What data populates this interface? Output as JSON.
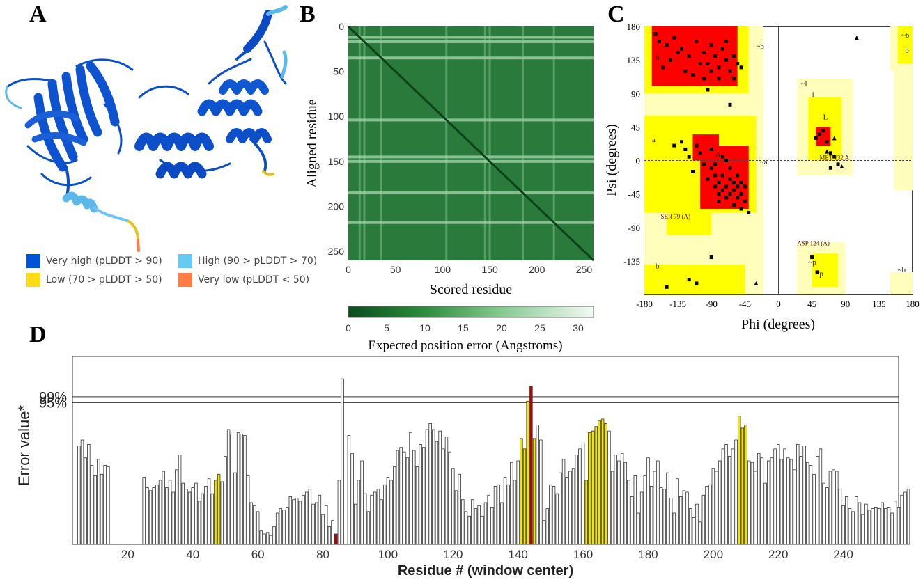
{
  "panels": {
    "a": "A",
    "b": "B",
    "c": "C",
    "d": "D"
  },
  "colors": {
    "very_high": "#0053d6",
    "high": "#65cbf3",
    "low": "#ffdb13",
    "very_low": "#ff7d45",
    "rama_core": "#ff0000",
    "rama_allowed": "#ffff00",
    "rama_generous": "#ffffbb",
    "bar_red": "#c00000",
    "bar_yellow": "#f2e600"
  },
  "panel_a": {
    "legend": [
      {
        "label": "Very high (pLDDT > 90)",
        "color_key": "very_high"
      },
      {
        "label": "High (90 > pLDDT > 70)",
        "color_key": "high"
      },
      {
        "label": "Low (70 > pLDDT > 50)",
        "color_key": "low"
      },
      {
        "label": "Very low (pLDDT < 50)",
        "color_key": "very_low"
      }
    ]
  },
  "chart_data": [
    {
      "type": "heatmap",
      "id": "pae",
      "xlabel": "Scored residue",
      "ylabel": "Aligned residue",
      "x_ticks": [
        "0",
        "50",
        "100",
        "150",
        "200",
        "250"
      ],
      "y_ticks": [
        "0",
        "50",
        "100",
        "150",
        "200",
        "250"
      ],
      "xlim": [
        0,
        260
      ],
      "ylim": [
        0,
        260
      ],
      "colorbar_label": "Expected position error (Angstroms)",
      "colorbar_ticks": [
        "0",
        "5",
        "10",
        "15",
        "20",
        "25",
        "30"
      ],
      "colorbar_range": [
        0,
        32
      ],
      "light_bands": [
        12,
        17,
        35,
        104,
        145,
        150,
        185,
        218
      ]
    },
    {
      "type": "scatter",
      "id": "ramachandran",
      "xlabel": "Phi (degrees)",
      "ylabel": "Psi (degrees)",
      "x_ticks": [
        "-180",
        "-135",
        "-90",
        "-45",
        "0",
        "45",
        "90",
        "135",
        "180"
      ],
      "y_ticks": [
        "180",
        "135",
        "90",
        "45",
        "0",
        "-45",
        "-90",
        "-135"
      ],
      "xlim": [
        -180,
        180
      ],
      "ylim": [
        -180,
        180
      ],
      "region_labels": [
        "b",
        "~b",
        "a",
        "A",
        "~a",
        "l",
        "~l",
        "L",
        "~p",
        "p",
        "~b",
        "b",
        "b",
        "~b"
      ],
      "annotations": [
        {
          "text": "SER 79 (A)",
          "phi": -158,
          "psi": -78
        },
        {
          "text": "MET 132 A",
          "phi": 55,
          "psi": 1
        },
        {
          "text": "ASP 124 (A)",
          "phi": 25,
          "psi": -114
        }
      ],
      "points": [
        [
          -165,
          170
        ],
        [
          -160,
          160
        ],
        [
          -150,
          155
        ],
        [
          -140,
          165
        ],
        [
          -130,
          150
        ],
        [
          -120,
          140
        ],
        [
          -110,
          160
        ],
        [
          -100,
          145
        ],
        [
          -95,
          130
        ],
        [
          -90,
          155
        ],
        [
          -85,
          140
        ],
        [
          -80,
          125
        ],
        [
          -75,
          150
        ],
        [
          -70,
          135
        ],
        [
          -65,
          120
        ],
        [
          -60,
          140
        ],
        [
          -55,
          130
        ],
        [
          -125,
          120
        ],
        [
          -115,
          115
        ],
        [
          -105,
          130
        ],
        [
          -100,
          110
        ],
        [
          -90,
          120
        ],
        [
          -80,
          110
        ],
        [
          -145,
          135
        ],
        [
          -135,
          145
        ],
        [
          -155,
          125
        ],
        [
          -70,
          160
        ],
        [
          -60,
          110
        ],
        [
          -50,
          125
        ],
        [
          -95,
          95
        ],
        [
          -90,
          -10
        ],
        [
          -85,
          -20
        ],
        [
          -80,
          -30
        ],
        [
          -75,
          -40
        ],
        [
          -70,
          -35
        ],
        [
          -65,
          -45
        ],
        [
          -60,
          -40
        ],
        [
          -55,
          -50
        ],
        [
          -50,
          -45
        ],
        [
          -45,
          -55
        ],
        [
          -65,
          -25
        ],
        [
          -70,
          -50
        ],
        [
          -60,
          -30
        ],
        [
          -55,
          -35
        ],
        [
          -75,
          -20
        ],
        [
          -80,
          -45
        ],
        [
          -85,
          -35
        ],
        [
          -95,
          -25
        ],
        [
          -100,
          -5
        ],
        [
          -105,
          10
        ],
        [
          -110,
          20
        ],
        [
          -120,
          5
        ],
        [
          -60,
          -60
        ],
        [
          -55,
          -20
        ],
        [
          -50,
          -30
        ],
        [
          -65,
          -10
        ],
        [
          -70,
          0
        ],
        [
          -75,
          5
        ],
        [
          -90,
          15
        ],
        [
          -80,
          -55
        ],
        [
          -140,
          20
        ],
        [
          -130,
          25
        ],
        [
          -125,
          15
        ],
        [
          -65,
          75
        ],
        [
          -40,
          -70
        ],
        [
          -45,
          -35
        ],
        [
          -50,
          -65
        ],
        [
          -85,
          -5
        ],
        [
          -115,
          -15
        ],
        [
          -150,
          -170
        ],
        [
          -120,
          -160
        ],
        [
          -110,
          -165
        ],
        [
          -90,
          -130
        ],
        [
          60,
          40
        ],
        [
          55,
          35
        ],
        [
          50,
          30
        ],
        [
          65,
          25
        ],
        [
          70,
          10
        ],
        [
          75,
          5
        ],
        [
          80,
          -5
        ],
        [
          70,
          -10
        ],
        [
          45,
          -130
        ],
        [
          52,
          -150
        ]
      ],
      "triangles": [
        [
          105,
          165
        ],
        [
          75,
          30
        ],
        [
          65,
          12
        ],
        [
          85,
          -8
        ],
        [
          -30,
          -165
        ]
      ]
    },
    {
      "type": "bar",
      "id": "errat",
      "xlabel": "Residue # (window center)",
      "ylabel": "Error value*",
      "thresholds": [
        {
          "label": "95%",
          "value": 95
        },
        {
          "label": "99%",
          "value": 99
        }
      ],
      "x_ticks": [
        20,
        40,
        60,
        80,
        100,
        120,
        140,
        160,
        180,
        200,
        220,
        240
      ],
      "xlim": [
        3,
        257
      ],
      "ylim": [
        0,
        126
      ],
      "start_residue": 5,
      "values": [
        66,
        70,
        58,
        67,
        53,
        46,
        57,
        47,
        53,
        52,
        0,
        0,
        0,
        0,
        0,
        0,
        0,
        0,
        0,
        0,
        45,
        38,
        36,
        38,
        40,
        43,
        49,
        38,
        43,
        35,
        50,
        60,
        41,
        37,
        35,
        38,
        41,
        29,
        34,
        39,
        44,
        34,
        43,
        47,
        42,
        59,
        77,
        74,
        48,
        75,
        74,
        73,
        46,
        28,
        26,
        22,
        9,
        7,
        8,
        6,
        12,
        21,
        24,
        23,
        25,
        32,
        30,
        31,
        29,
        33,
        35,
        37,
        27,
        28,
        33,
        20,
        26,
        12,
        16,
        7,
        43,
        111,
        0,
        73,
        61,
        27,
        43,
        56,
        34,
        22,
        33,
        35,
        37,
        30,
        40,
        45,
        43,
        52,
        63,
        65,
        62,
        58,
        75,
        63,
        52,
        67,
        65,
        77,
        81,
        77,
        69,
        76,
        64,
        72,
        62,
        51,
        36,
        47,
        30,
        22,
        19,
        30,
        24,
        26,
        19,
        28,
        33,
        25,
        39,
        40,
        28,
        45,
        40,
        55,
        43,
        56,
        71,
        64,
        96,
        106,
        71,
        80,
        70,
        16,
        24,
        40,
        39,
        34,
        48,
        57,
        45,
        49,
        51,
        60,
        64,
        68,
        43,
        75,
        76,
        79,
        83,
        84,
        81,
        76,
        49,
        60,
        56,
        61,
        55,
        43,
        32,
        46,
        21,
        35,
        46,
        58,
        39,
        49,
        56,
        38,
        37,
        48,
        31,
        21,
        44,
        32,
        36,
        35,
        24,
        18,
        27,
        15,
        33,
        39,
        40,
        51,
        49,
        56,
        64,
        67,
        59,
        64,
        70,
        86,
        78,
        80,
        56,
        55,
        49,
        61,
        58,
        41,
        56,
        58,
        64,
        67,
        57,
        64,
        58,
        57,
        50,
        67,
        59,
        66,
        55,
        53,
        47,
        59,
        64,
        41,
        38,
        49,
        50,
        49,
        37,
        26,
        32,
        24,
        22,
        32,
        28,
        20,
        27,
        23,
        24,
        25,
        24,
        28,
        24,
        25,
        21,
        29,
        25,
        33,
        35,
        37
      ],
      "red_residues": [
        84,
        144
      ],
      "yellow_residues": [
        47,
        48,
        141,
        142,
        143,
        145,
        161,
        162,
        163,
        164,
        165,
        166,
        167,
        208,
        209,
        210
      ]
    }
  ]
}
